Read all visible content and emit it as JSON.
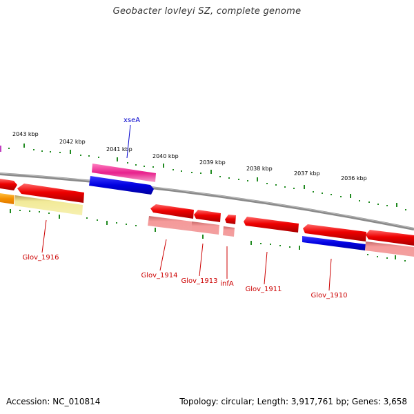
{
  "title": "Geobacter lovleyi SZ, complete genome",
  "footer": {
    "accession": "Accession: NC_010814",
    "summary": "Topology: circular; Length: 3,917,761 bp; Genes: 3,658"
  },
  "colors": {
    "backbone": "#8c8c8c",
    "tick": "#208a20",
    "forward_gene": "#e00000",
    "forward_gene_light": "#f08080",
    "pink_gene": "#e8308c",
    "blue_gene": "#0000e0",
    "orange_gene": "#f4a000",
    "yellow_gene": "#f0e890",
    "red_label": "#cc0000",
    "blue_label": "#0000cc"
  },
  "kbp_labels": [
    "2043 kbp",
    "2042 kbp",
    "2041 kbp",
    "2040 kbp",
    "2039 kbp",
    "2038 kbp",
    "2037 kbp",
    "2036 kbp"
  ],
  "gene_labels": [
    {
      "text": "xseA",
      "color": "blue"
    },
    {
      "text": "Glov_1916",
      "color": "red"
    },
    {
      "text": "Glov_1914",
      "color": "red"
    },
    {
      "text": "Glov_1913",
      "color": "red"
    },
    {
      "text": "infA",
      "color": "red"
    },
    {
      "text": "Glov_1911",
      "color": "red"
    },
    {
      "text": "Glov_1910",
      "color": "red"
    }
  ]
}
